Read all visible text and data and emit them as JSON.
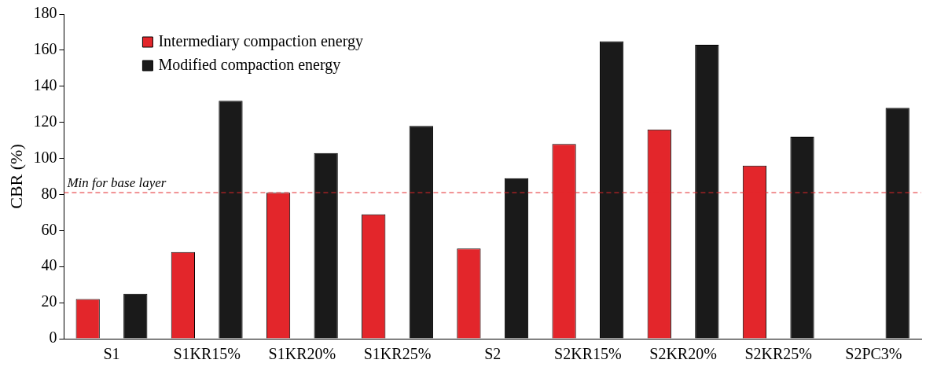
{
  "chart_data": {
    "type": "bar",
    "ylabel": "CBR (%)",
    "categories": [
      "S1",
      "S1KR15%",
      "S1KR20%",
      "S1KR25%",
      "S2",
      "S2KR15%",
      "S2KR20%",
      "S2KR25%",
      "S2PC3%"
    ],
    "series": [
      {
        "name": "Intermediary compaction energy",
        "color": "#e3262b",
        "values": [
          22,
          48,
          81,
          69,
          50,
          108,
          116,
          96,
          null
        ]
      },
      {
        "name": "Modified compaction energy",
        "color": "#1a1a1a",
        "values": [
          25,
          132,
          103,
          118,
          89,
          165,
          163,
          112,
          128
        ]
      }
    ],
    "ylim": [
      0,
      180
    ],
    "yticks": [
      0,
      20,
      40,
      60,
      80,
      100,
      120,
      140,
      160,
      180
    ],
    "ref_lines": [
      {
        "axis": "y",
        "value": 81,
        "label": "Min for base layer",
        "color": "#e3262b",
        "line_style": "dashed"
      }
    ],
    "grid": false,
    "legend": "top left"
  }
}
